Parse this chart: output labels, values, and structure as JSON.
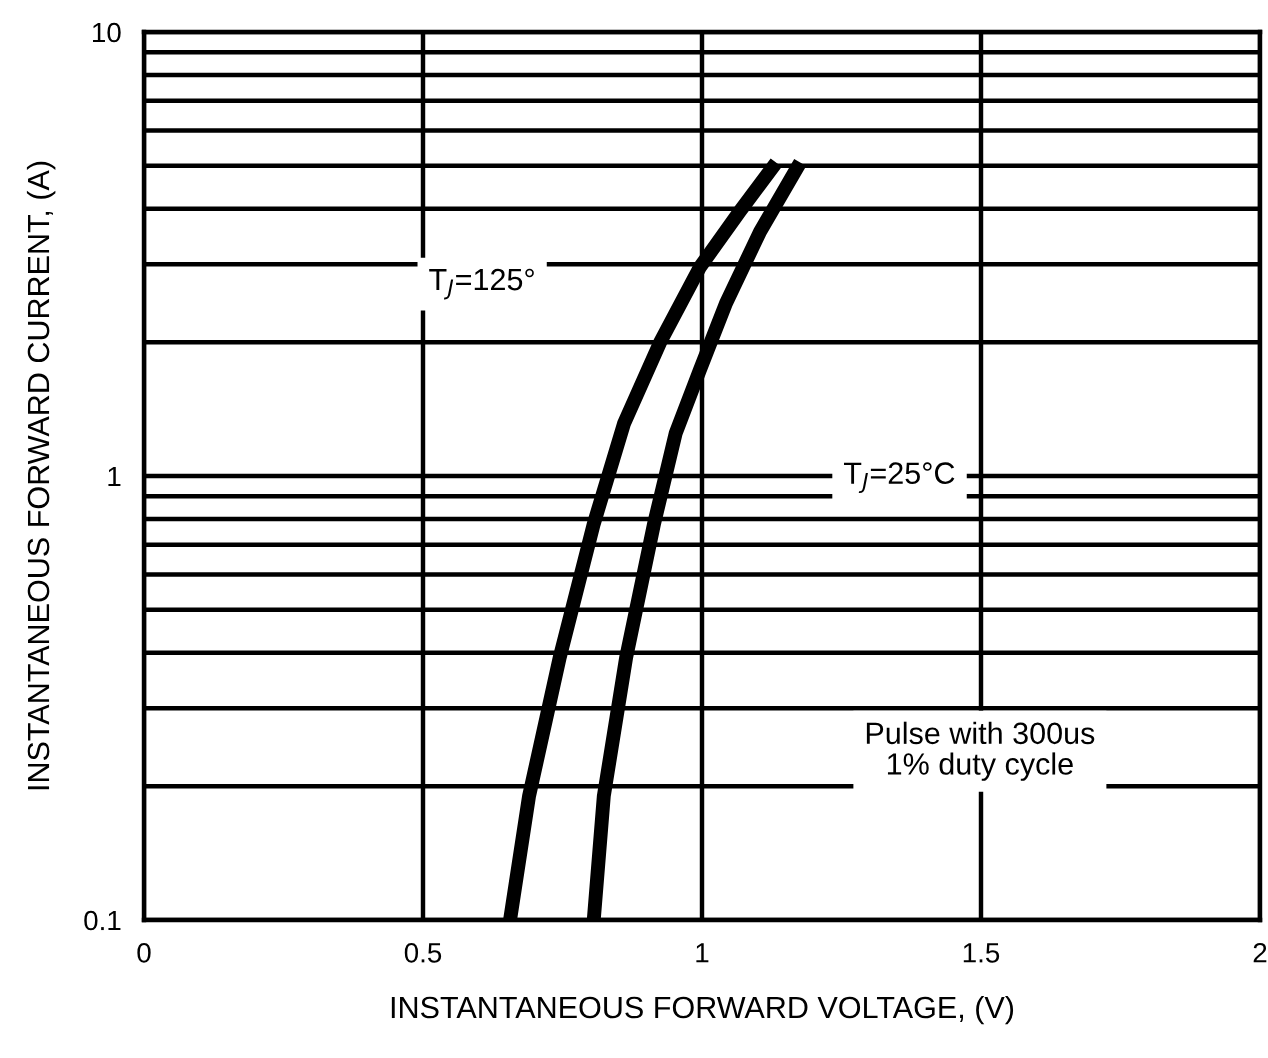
{
  "chart_data": {
    "type": "line",
    "xlabel": "INSTANTANEOUS FORWARD VOLTAGE, (V)",
    "ylabel": "INSTANTANEOUS FORWARD CURRENT, (A)",
    "log": "y",
    "xlim": [
      0,
      2
    ],
    "ylim": [
      0.1,
      10
    ],
    "xticks": [
      0,
      0.5,
      1,
      1.5,
      2
    ],
    "yticks": [
      0.1,
      {
        "value": 0.2,
        "label": null
      },
      {
        "value": 0.3,
        "label": null
      },
      {
        "value": 0.4,
        "label": null
      },
      {
        "value": 0.5,
        "label": null
      },
      {
        "value": 0.6,
        "label": null
      },
      {
        "value": 0.7,
        "label": null
      },
      {
        "value": 0.8,
        "label": null
      },
      {
        "value": 0.9,
        "label": null
      },
      1,
      {
        "value": 2,
        "label": null
      },
      {
        "value": 3,
        "label": null
      },
      {
        "value": 4,
        "label": null
      },
      {
        "value": 5,
        "label": null
      },
      {
        "value": 6,
        "label": null
      },
      {
        "value": 7,
        "label": null
      },
      {
        "value": 8,
        "label": null
      },
      {
        "value": 9,
        "label": null
      },
      10
    ],
    "grid": true,
    "marker": "none",
    "line_style": "solid",
    "series": [
      {
        "color": "#000000",
        "x": [
          0.656,
          0.69,
          0.745,
          0.806,
          0.86,
          0.925,
          0.996,
          1.068,
          1.133
        ],
        "values": [
          0.1,
          0.19,
          0.39,
          0.78,
          1.31,
          2.0,
          2.95,
          3.95,
          5.08
        ]
      },
      {
        "color": "#000000",
        "x": [
          0.806,
          0.824,
          0.864,
          0.914,
          0.953,
          0.996,
          1.043,
          1.104,
          1.176
        ],
        "values": [
          0.1,
          0.19,
          0.39,
          0.78,
          1.25,
          1.73,
          2.45,
          3.55,
          5.08
        ]
      }
    ],
    "annotations": [
      "T$_{J}$=125°",
      "T$_{J}$=25°C",
      "Pulse with 300us\n1% duty cycle"
    ]
  }
}
